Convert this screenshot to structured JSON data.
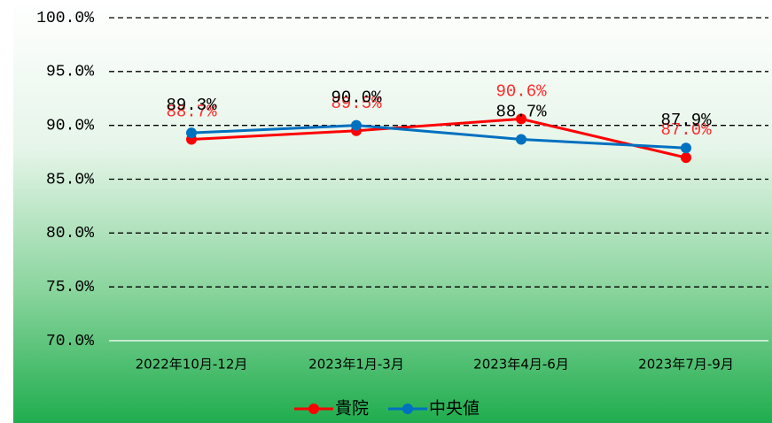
{
  "chart_data": {
    "type": "line",
    "categories": [
      "2022年10月-12月",
      "2023年1月-3月",
      "2023年4月-6月",
      "2023年7月-9月"
    ],
    "series": [
      {
        "name": "貴院",
        "color": "#ff0000",
        "label_color": "#ff2a2a",
        "values": [
          88.7,
          89.5,
          90.6,
          87.0
        ],
        "value_labels": [
          "88.7%",
          "89.5%",
          "90.6%",
          "87.0%"
        ]
      },
      {
        "name": "中央値",
        "color": "#0070c0",
        "label_color": "#000000",
        "values": [
          89.3,
          90.0,
          88.7,
          87.9
        ],
        "value_labels": [
          "89.3%",
          "90.0%",
          "88.7%",
          "87.9%"
        ]
      }
    ],
    "ylim": [
      70,
      100
    ],
    "yticks": [
      {
        "value": 70,
        "label": "70.0%"
      },
      {
        "value": 75,
        "label": "75.0%"
      },
      {
        "value": 80,
        "label": "80.0%"
      },
      {
        "value": 85,
        "label": "85.0%"
      },
      {
        "value": 90,
        "label": "90.0%"
      },
      {
        "value": 95,
        "label": "95.0%"
      },
      {
        "value": 100,
        "label": "100.0%"
      }
    ],
    "grid": true,
    "legend": "bottom"
  }
}
